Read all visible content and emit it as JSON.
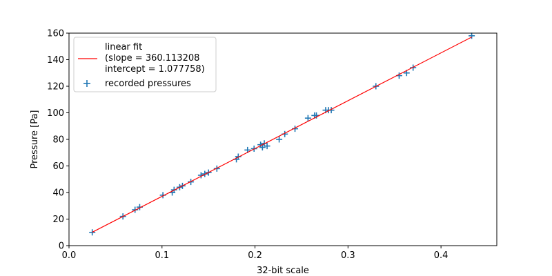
{
  "chart_data": {
    "type": "scatter",
    "title": "",
    "xlabel": "32-bit scale",
    "ylabel": "Pressure [Pa]",
    "xlim": [
      0.0,
      0.46
    ],
    "ylim": [
      0,
      160
    ],
    "xticks": [
      0.0,
      0.1,
      0.2,
      0.3,
      0.4
    ],
    "xtick_labels": [
      "0.0",
      "0.1",
      "0.2",
      "0.3",
      "0.4"
    ],
    "yticks": [
      0,
      20,
      40,
      60,
      80,
      100,
      120,
      140,
      160
    ],
    "ytick_labels": [
      "0",
      "20",
      "40",
      "60",
      "80",
      "100",
      "120",
      "140",
      "160"
    ],
    "grid": false,
    "legend_position": "top-left",
    "fit": {
      "legend_lines": [
        "linear fit",
        "(slope = 360.113208",
        "intercept = 1.077758)"
      ],
      "slope": 360.113208,
      "intercept": 1.077758,
      "x_range": [
        0.025,
        0.433
      ],
      "color": "#ff0000"
    },
    "scatter": {
      "name": "recorded pressures",
      "color": "#1f77b4",
      "points": [
        [
          0.025,
          10
        ],
        [
          0.058,
          22
        ],
        [
          0.071,
          27
        ],
        [
          0.076,
          29
        ],
        [
          0.101,
          38
        ],
        [
          0.111,
          40
        ],
        [
          0.113,
          42
        ],
        [
          0.119,
          44
        ],
        [
          0.122,
          45
        ],
        [
          0.131,
          48
        ],
        [
          0.142,
          53
        ],
        [
          0.146,
          54
        ],
        [
          0.15,
          55
        ],
        [
          0.159,
          58
        ],
        [
          0.18,
          65
        ],
        [
          0.182,
          67
        ],
        [
          0.192,
          72
        ],
        [
          0.199,
          73
        ],
        [
          0.206,
          76
        ],
        [
          0.208,
          74
        ],
        [
          0.21,
          77
        ],
        [
          0.213,
          75
        ],
        [
          0.226,
          80
        ],
        [
          0.232,
          84
        ],
        [
          0.243,
          88
        ],
        [
          0.257,
          96
        ],
        [
          0.264,
          98
        ],
        [
          0.266,
          98
        ],
        [
          0.276,
          102
        ],
        [
          0.279,
          102
        ],
        [
          0.282,
          102
        ],
        [
          0.33,
          120
        ],
        [
          0.355,
          128
        ],
        [
          0.363,
          130
        ],
        [
          0.37,
          134
        ],
        [
          0.433,
          158
        ]
      ]
    }
  }
}
